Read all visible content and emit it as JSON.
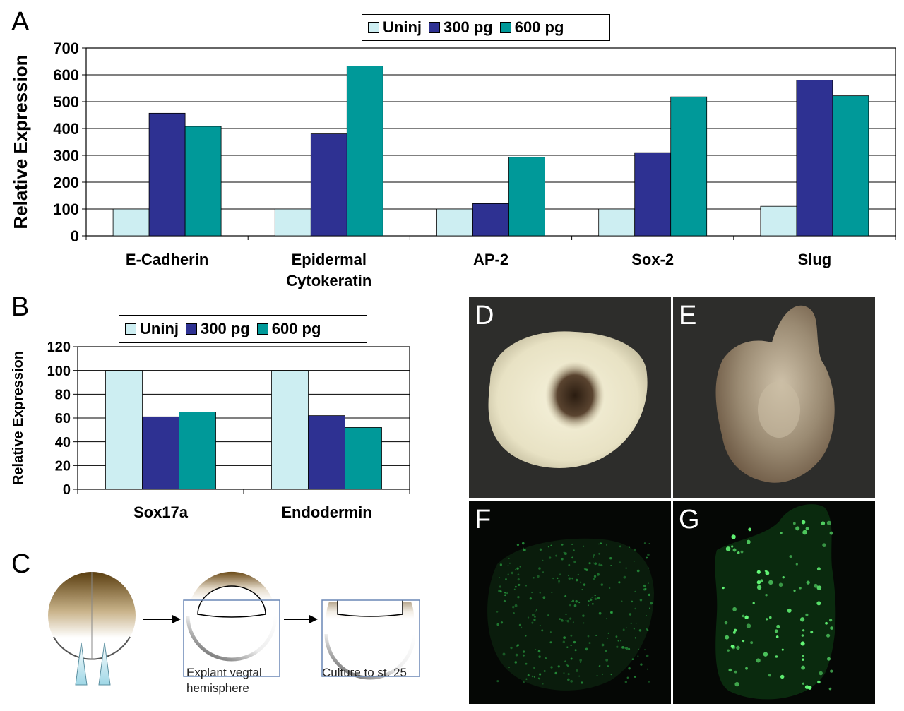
{
  "panels": {
    "a": "A",
    "b": "B",
    "c": "C",
    "d": "D",
    "e": "E",
    "f": "F",
    "g": "G"
  },
  "legend": [
    "Uninj",
    "300 pg",
    "600 pg"
  ],
  "colors": {
    "uninj": "#cdeef2",
    "pg300": "#2e3192",
    "pg600": "#009999"
  },
  "panel_c": {
    "caption1_line1": "Explant vegtal",
    "caption1_line2": "hemisphere",
    "caption2": "Culture to st. 25"
  },
  "chart_data": [
    {
      "type": "bar",
      "ylabel": "Relative Expression",
      "ylim": [
        0,
        700
      ],
      "yticks": [
        0,
        100,
        200,
        300,
        400,
        500,
        600,
        700
      ],
      "grid": true,
      "legend_position": "top-center",
      "categories": [
        [
          "E-Cadherin"
        ],
        [
          "Epidermal",
          "Cytokeratin"
        ],
        [
          "AP-2"
        ],
        [
          "Sox-2"
        ],
        [
          "Slug"
        ]
      ],
      "series": [
        {
          "name": "Uninj",
          "values": [
            100,
            100,
            100,
            100,
            110
          ]
        },
        {
          "name": "300 pg",
          "values": [
            457,
            380,
            120,
            310,
            580
          ]
        },
        {
          "name": "600 pg",
          "values": [
            408,
            633,
            293,
            518,
            522
          ]
        }
      ]
    },
    {
      "type": "bar",
      "ylabel": "Relative Expression",
      "ylim": [
        0,
        120
      ],
      "yticks": [
        0,
        20,
        40,
        60,
        80,
        100,
        120
      ],
      "grid": true,
      "legend_position": "top-center",
      "categories": [
        [
          "Sox17a"
        ],
        [
          "Endodermin"
        ]
      ],
      "series": [
        {
          "name": "Uninj",
          "values": [
            100,
            100
          ]
        },
        {
          "name": "300 pg",
          "values": [
            61,
            62
          ]
        },
        {
          "name": "600 pg",
          "values": [
            65,
            52
          ]
        }
      ]
    }
  ]
}
